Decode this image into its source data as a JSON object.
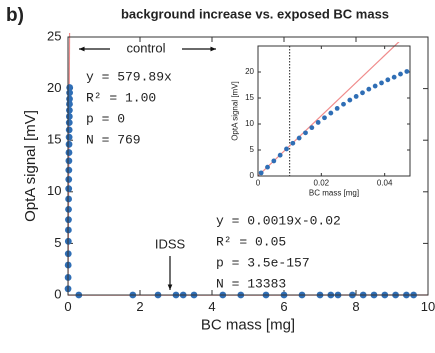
{
  "panel_label": "b)",
  "chart_data": [
    {
      "type": "scatter",
      "title": "background increase vs. exposed BC mass",
      "xlabel": "BC mass [mg]",
      "ylabel": "OptA signal [mV]",
      "xlim": [
        0,
        10
      ],
      "ylim": [
        0,
        25
      ],
      "xticks": [
        0,
        2,
        4,
        6,
        8,
        10
      ],
      "yticks": [
        0,
        5,
        10,
        15,
        20,
        25
      ],
      "series": [
        {
          "name": "control",
          "color": "#2f6eb5",
          "x": [
            0.001,
            0.003,
            0.005,
            0.007,
            0.009,
            0.011,
            0.013,
            0.015,
            0.017,
            0.019,
            0.021,
            0.023,
            0.025,
            0.027,
            0.029,
            0.031,
            0.033,
            0.035,
            0.037,
            0.039,
            0.041,
            0.043,
            0.045,
            0.047
          ],
          "values": [
            0.6,
            1.7,
            2.9,
            4.0,
            5.2,
            6.3,
            7.3,
            8.3,
            9.3,
            10.3,
            11.2,
            12.1,
            13.0,
            13.8,
            14.6,
            15.3,
            16.0,
            16.7,
            17.3,
            17.9,
            18.5,
            19.0,
            19.6,
            20.1
          ]
        },
        {
          "name": "IDSS",
          "color": "#2f6eb5",
          "x": [
            0.3,
            1.8,
            2.5,
            3.0,
            3.2,
            3.5,
            4.3,
            4.8,
            5.5,
            6.0,
            6.5,
            7.0,
            7.3,
            7.5,
            7.9,
            8.2,
            8.5,
            8.8,
            9.1,
            9.4,
            9.6
          ],
          "values": [
            0,
            0,
            0,
            0,
            0,
            0,
            0,
            0,
            0,
            0,
            0,
            0,
            0,
            0,
            0,
            0,
            0,
            0,
            0,
            0,
            0
          ]
        }
      ],
      "fits": [
        {
          "slope": 579.89,
          "intercept": 0,
          "color": "#f08c8c"
        },
        {
          "slope": 0.0019,
          "intercept": -0.02,
          "color": "#f08c8c"
        }
      ],
      "annotations": [
        [
          "y = 579.89x",
          "R² = 1.00",
          "p = 0",
          "N = 769"
        ],
        [
          "y = 0.0019x-0.02",
          "R² = 0.05",
          "p = 3.5e-157",
          "N = 13383"
        ]
      ]
    },
    {
      "type": "scatter",
      "xlabel": "BC mass [mg]",
      "ylabel": "OptA signal [mV]",
      "xlim": [
        0,
        0.048
      ],
      "ylim": [
        0,
        25
      ],
      "xticks": [
        0,
        0.02,
        0.04
      ],
      "yticks": [
        0,
        5,
        10,
        15,
        20
      ],
      "series": [
        {
          "color": "#2f6eb5",
          "x": [
            0.001,
            0.003,
            0.005,
            0.007,
            0.009,
            0.011,
            0.013,
            0.015,
            0.017,
            0.019,
            0.021,
            0.023,
            0.025,
            0.027,
            0.029,
            0.031,
            0.033,
            0.035,
            0.037,
            0.039,
            0.041,
            0.043,
            0.045,
            0.047
          ],
          "values": [
            0.6,
            1.7,
            2.9,
            4.0,
            5.2,
            6.3,
            7.3,
            8.3,
            9.3,
            10.3,
            11.2,
            12.1,
            13.0,
            13.8,
            14.6,
            15.3,
            16.0,
            16.7,
            17.3,
            17.9,
            18.5,
            19.0,
            19.6,
            20.1
          ]
        }
      ],
      "fits": [
        {
          "slope": 579.89,
          "intercept": 0,
          "color": "#f08c8c"
        }
      ],
      "vlines": [
        0.01
      ]
    }
  ]
}
